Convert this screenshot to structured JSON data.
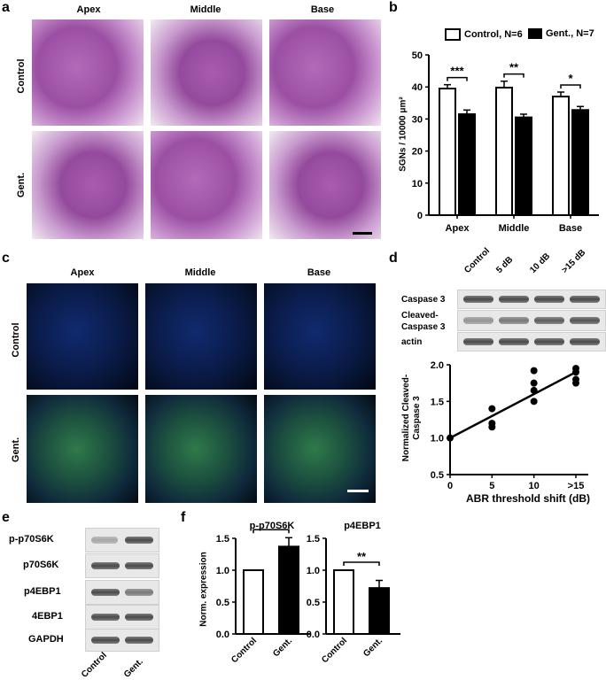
{
  "panel_a": {
    "letter": "a",
    "columns": [
      "Apex",
      "Middle",
      "Base"
    ],
    "rows": [
      "Control",
      "Gent."
    ]
  },
  "panel_b": {
    "letter": "b",
    "legend": [
      "Control, N=6",
      "Gent., N=7"
    ],
    "ylabel": "SGNs / 10000 μm²",
    "chart_data": {
      "type": "bar",
      "categories": [
        "Apex",
        "Middle",
        "Base"
      ],
      "series": [
        {
          "name": "Control, N=6",
          "values": [
            39.5,
            39.8,
            37.0
          ],
          "errors": [
            1.2,
            2.0,
            1.4
          ]
        },
        {
          "name": "Gent., N=7",
          "values": [
            31.5,
            30.5,
            32.8
          ],
          "errors": [
            1.3,
            1.0,
            1.1
          ]
        }
      ],
      "ylim": [
        0,
        50
      ],
      "yticks": [
        "0",
        "10",
        "20",
        "30",
        "40",
        "50"
      ],
      "significance": [
        "***",
        "**",
        "*"
      ]
    }
  },
  "panel_c": {
    "letter": "c",
    "columns": [
      "Apex",
      "Middle",
      "Base"
    ],
    "rows": [
      "Control",
      "Gent."
    ]
  },
  "panel_d": {
    "letter": "d",
    "blot_lanes": [
      "Control",
      "5 dB",
      "10 dB",
      ">15 dB"
    ],
    "blot_rows": [
      "Caspase 3",
      "Cleaved-\nCaspase 3",
      "actin"
    ],
    "ylabel": "Normalized Cleaved-\nCaspase 3",
    "xlabel": "ABR threshold shift (dB)",
    "chart_data": {
      "type": "scatter",
      "categories": [
        "0",
        "5",
        "10",
        ">15"
      ],
      "points": [
        {
          "x": 0,
          "y": 1.0
        },
        {
          "x": 5,
          "y": 1.4
        },
        {
          "x": 5,
          "y": 1.2
        },
        {
          "x": 5,
          "y": 1.15
        },
        {
          "x": 10,
          "y": 1.92
        },
        {
          "x": 10,
          "y": 1.75
        },
        {
          "x": 10,
          "y": 1.65
        },
        {
          "x": 10,
          "y": 1.5
        },
        {
          "x": 15,
          "y": 1.95
        },
        {
          "x": 15,
          "y": 1.9
        },
        {
          "x": 15,
          "y": 1.8
        },
        {
          "x": 15,
          "y": 1.75
        }
      ],
      "fit_line": [
        [
          0,
          1.0
        ],
        [
          15,
          1.9
        ]
      ],
      "ylim": [
        0.5,
        2.0
      ],
      "yticks": [
        "0.5",
        "1.0",
        "1.5",
        "2.0"
      ]
    }
  },
  "panel_e": {
    "letter": "e",
    "blot_rows": [
      "p-p70S6K",
      "p70S6K",
      "p4EBP1",
      "4EBP1",
      "GAPDH"
    ],
    "lanes": [
      "Control",
      "Gent."
    ]
  },
  "panel_f": {
    "letter": "f",
    "ylabel": "Norm. expression",
    "chart_data": [
      {
        "type": "bar",
        "title": "p-p70S6K",
        "categories": [
          "Control",
          "Gent."
        ],
        "values": [
          1.0,
          1.37
        ],
        "errors": [
          0,
          0.14
        ],
        "ylim": [
          0,
          1.5
        ],
        "yticks": [
          "0.0",
          "0.5",
          "1.0",
          "1.5"
        ],
        "significance": "*"
      },
      {
        "type": "bar",
        "title": "p4EBP1",
        "categories": [
          "Control",
          "Gent."
        ],
        "values": [
          1.0,
          0.72
        ],
        "errors": [
          0,
          0.12
        ],
        "ylim": [
          0,
          1.5
        ],
        "yticks": [
          "0.0",
          "0.5",
          "1.0",
          "1.5"
        ],
        "significance": "**"
      }
    ]
  }
}
